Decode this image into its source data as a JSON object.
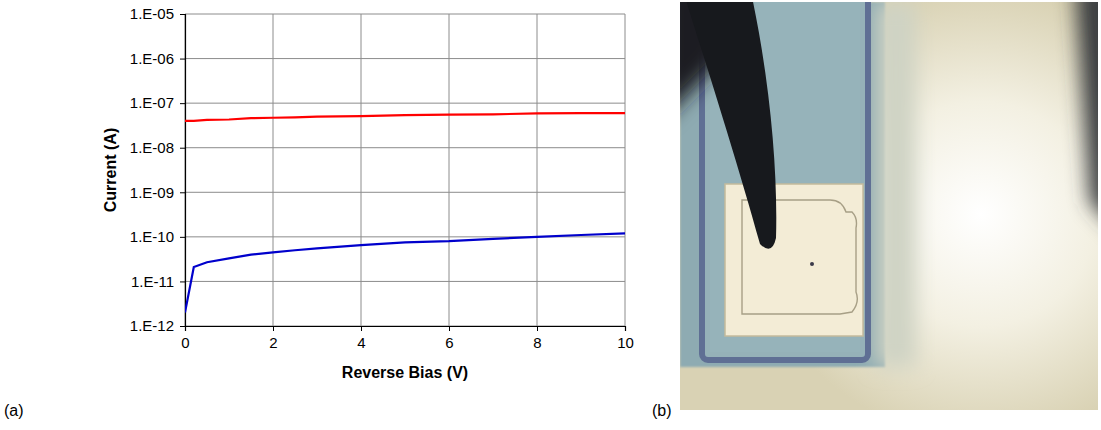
{
  "chart_data": {
    "type": "line",
    "x_label": "Reverse Bias (V)",
    "y_label": "Current (A)",
    "x": [
      0,
      0.2,
      0.5,
      1,
      1.5,
      2,
      2.5,
      3,
      4,
      5,
      6,
      7,
      8,
      9,
      10
    ],
    "series": [
      {
        "color": "#ff0000",
        "values": [
          4e-08,
          4e-08,
          4.2e-08,
          4.3e-08,
          4.6e-08,
          4.7e-08,
          4.8e-08,
          5e-08,
          5.1e-08,
          5.4e-08,
          5.5e-08,
          5.6e-08,
          5.9e-08,
          6e-08,
          6e-08
        ]
      },
      {
        "color": "#0000cc",
        "values": [
          2e-12,
          2.1e-11,
          2.7e-11,
          3.3e-11,
          4e-11,
          4.5e-11,
          5e-11,
          5.5e-11,
          6.5e-11,
          7.5e-11,
          8e-11,
          9e-11,
          1e-10,
          1.1e-10,
          1.2e-10
        ]
      }
    ],
    "xlim": [
      0,
      10
    ],
    "xticks": [
      0,
      2,
      4,
      6,
      8,
      10
    ],
    "ylim": [
      1e-12,
      1e-05
    ],
    "yticks": [
      {
        "value": 1e-12,
        "label": "1.E-12"
      },
      {
        "value": 1e-11,
        "label": "1.E-11"
      },
      {
        "value": 1e-10,
        "label": "1.E-10"
      },
      {
        "value": 1e-09,
        "label": "1.E-09"
      },
      {
        "value": 1e-08,
        "label": "1.E-08"
      },
      {
        "value": 1e-07,
        "label": "1.E-07"
      },
      {
        "value": 1e-06,
        "label": "1.E-06"
      },
      {
        "value": 1e-05,
        "label": "1.E-05"
      }
    ],
    "log": "y",
    "grid": true
  },
  "labels": [
    "(a)",
    "(b)"
  ]
}
